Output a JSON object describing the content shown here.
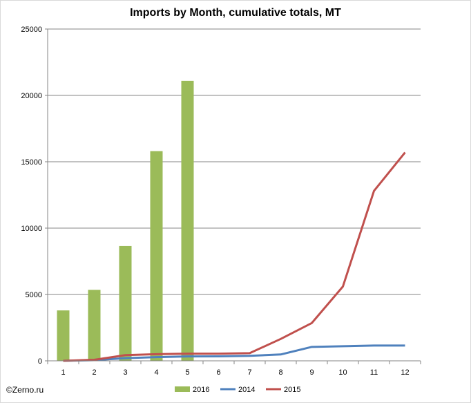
{
  "chart_data": {
    "type": "bar+line",
    "title": "Imports by Month, cumulative totals, MT",
    "categories": [
      "1",
      "2",
      "3",
      "4",
      "5",
      "6",
      "7",
      "8",
      "9",
      "10",
      "11",
      "12"
    ],
    "ylim": [
      0,
      25000
    ],
    "yticks": [
      "0",
      "5000",
      "10000",
      "15000",
      "20000",
      "25000"
    ],
    "grid": "horizontal",
    "legend_position": "bottom",
    "series": [
      {
        "name": "2016",
        "kind": "bar",
        "color": "#9bbb59",
        "values": [
          3800,
          5350,
          8650,
          15800,
          21100,
          null,
          null,
          null,
          null,
          null,
          null,
          null
        ]
      },
      {
        "name": "2014",
        "kind": "line",
        "color": "#4f81bd",
        "values": [
          0,
          50,
          200,
          280,
          330,
          340,
          380,
          480,
          1050,
          1100,
          1150,
          1150
        ]
      },
      {
        "name": "2015",
        "kind": "line",
        "color": "#c0504d",
        "values": [
          0,
          80,
          430,
          500,
          540,
          540,
          580,
          1650,
          2850,
          5600,
          12800,
          15700
        ]
      }
    ]
  },
  "footer": {
    "copyright": "©Zerno.ru"
  }
}
